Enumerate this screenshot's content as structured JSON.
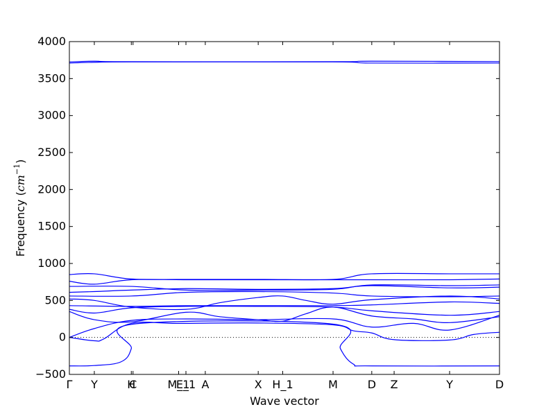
{
  "chart_data": {
    "type": "line",
    "title": "",
    "xlabel": "Wave vector",
    "ylabel_text": "Frequency (",
    "ylabel_unit_base": "cm",
    "ylabel_unit_exp": "−1",
    "ylabel_close": ")",
    "ylim": [
      -500,
      4000
    ],
    "yticks": [
      -500,
      0,
      500,
      1000,
      1500,
      2000,
      2500,
      3000,
      3500,
      4000
    ],
    "line_color": "#0000ff",
    "zero_line": true,
    "grid": false,
    "xlim": [
      0,
      100
    ],
    "high_points": [
      {
        "label": "Γ",
        "x": 0
      },
      {
        "label": "Y",
        "x": 5.8
      },
      {
        "label": "H",
        "x": 14.4
      },
      {
        "label": "C",
        "x": 14.8
      },
      {
        "label": "M_1",
        "x": 25.4
      },
      {
        "label": "E_1",
        "x": 27.1
      },
      {
        "label": "A",
        "x": 31.6
      },
      {
        "label": "X",
        "x": 43.9
      },
      {
        "label": "H_1",
        "x": 49.6
      },
      {
        "label": "M",
        "x": 61.3
      },
      {
        "label": "D",
        "x": 70.3
      },
      {
        "label": "Z",
        "x": 75.5
      },
      {
        "label": "Y",
        "x": 88.4
      },
      {
        "label": "D",
        "x": 100
      }
    ],
    "series": [
      {
        "x": [
          0,
          5.8,
          12,
          14.4,
          14.8,
          61.3,
          63,
          66,
          70.3,
          100
        ],
        "y": [
          -385,
          -380,
          -330,
          -150,
          180,
          180,
          -150,
          -360,
          -385,
          -385
        ]
      },
      {
        "x": [
          0,
          5.8,
          8,
          14.4,
          25.4,
          43.9,
          61.3,
          66,
          70.3,
          75.5,
          88.4,
          94,
          100
        ],
        "y": [
          0,
          -45,
          -20,
          190,
          190,
          195,
          170,
          90,
          60,
          -30,
          -35,
          40,
          70
        ]
      },
      {
        "x": [
          0,
          5.8,
          14.4,
          27.1,
          43.9,
          61.3,
          70.3,
          80,
          88.4,
          100
        ],
        "y": [
          0,
          120,
          230,
          250,
          240,
          250,
          140,
          190,
          100,
          300
        ]
      },
      {
        "x": [
          0,
          5.8,
          14.4,
          27.1,
          35,
          43.9,
          49.6,
          55,
          61.3,
          70.3,
          80,
          88.4,
          100
        ],
        "y": [
          350,
          240,
          210,
          340,
          280,
          240,
          220,
          320,
          410,
          290,
          250,
          200,
          280
        ]
      },
      {
        "x": [
          0,
          5.8,
          14.4,
          27.1,
          43.9,
          61.3,
          70.3,
          88.4,
          100
        ],
        "y": [
          380,
          330,
          400,
          420,
          420,
          410,
          360,
          300,
          350
        ]
      },
      {
        "x": [
          0,
          14.4,
          27.1,
          43.9,
          61.3,
          70.3,
          88.4,
          100
        ],
        "y": [
          430,
          420,
          430,
          430,
          430,
          440,
          480,
          460
        ]
      },
      {
        "x": [
          0,
          5.8,
          14.4,
          27.1,
          35,
          43.9,
          49.6,
          55,
          61.3,
          70.3,
          88.4,
          100
        ],
        "y": [
          520,
          500,
          410,
          380,
          470,
          540,
          560,
          500,
          450,
          510,
          560,
          520
        ]
      },
      {
        "x": [
          0,
          14.4,
          27.1,
          43.9,
          61.3,
          70.3,
          88.4,
          100
        ],
        "y": [
          560,
          560,
          610,
          620,
          600,
          560,
          550,
          560
        ]
      },
      {
        "x": [
          0,
          5.8,
          14.4,
          27.1,
          43.9,
          61.3,
          70.3,
          88.4,
          100
        ],
        "y": [
          610,
          620,
          640,
          660,
          650,
          660,
          700,
          670,
          680
        ]
      },
      {
        "x": [
          0,
          14.4,
          27.1,
          43.9,
          61.3,
          70.3,
          88.4,
          100
        ],
        "y": [
          690,
          690,
          640,
          640,
          650,
          710,
          700,
          710
        ]
      },
      {
        "x": [
          0,
          5.8,
          14.4,
          27.1,
          43.9,
          61.3,
          70.3,
          88.4,
          100
        ],
        "y": [
          760,
          720,
          780,
          780,
          780,
          780,
          780,
          780,
          790
        ]
      },
      {
        "x": [
          0,
          5.8,
          14.4,
          27.1,
          43.9,
          61.3,
          70.3,
          88.4,
          100
        ],
        "y": [
          850,
          860,
          790,
          785,
          785,
          785,
          860,
          860,
          860
        ]
      },
      {
        "x": [
          0,
          5.8,
          14.4,
          61.3,
          70.3,
          100
        ],
        "y": [
          3710,
          3720,
          3725,
          3725,
          3710,
          3710
        ]
      },
      {
        "x": [
          0,
          5.8,
          14.4,
          61.3,
          70.3,
          100
        ],
        "y": [
          3725,
          3735,
          3728,
          3728,
          3735,
          3730
        ]
      }
    ]
  }
}
